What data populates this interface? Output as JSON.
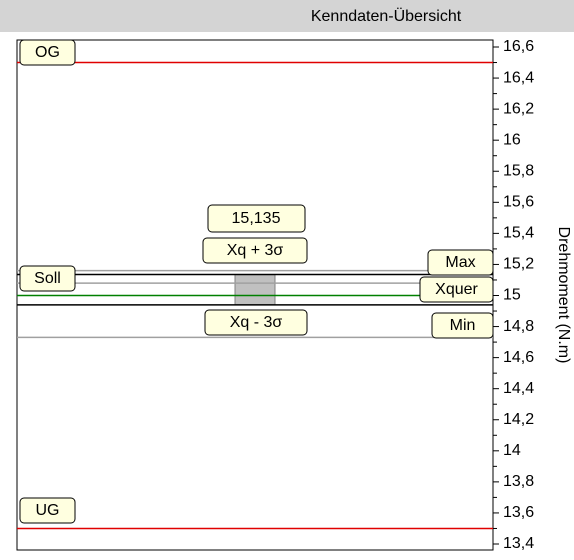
{
  "chart_data": {
    "type": "control-overview",
    "title": "Kenndaten-Übersicht",
    "y_label": "Drehmoment (N.m)",
    "ylim": [
      13.4,
      16.6
    ],
    "yticks": [
      {
        "value": 13.4,
        "label": "13,4"
      },
      {
        "value": 13.6,
        "label": "13,6"
      },
      {
        "value": 13.8,
        "label": "13,8"
      },
      14,
      {
        "value": 14.2,
        "label": "14,2"
      },
      {
        "value": 14.4,
        "label": "14,4"
      },
      {
        "value": 14.6,
        "label": "14,6"
      },
      {
        "value": 14.8,
        "label": "14,8"
      },
      15,
      {
        "value": 15.2,
        "label": "15,2"
      },
      {
        "value": 15.4,
        "label": "15,4"
      },
      {
        "value": 15.6,
        "label": "15,6"
      },
      {
        "value": 15.8,
        "label": "15,8"
      },
      16,
      {
        "value": 16.2,
        "label": "16,2"
      },
      {
        "value": 16.4,
        "label": "16,4"
      },
      {
        "value": 16.6,
        "label": "16,6"
      }
    ],
    "series": [
      {
        "name": "OG",
        "color": "#e00000",
        "values": [
          16.5
        ]
      },
      {
        "name": "UG",
        "color": "#e00000",
        "values": [
          13.5
        ]
      },
      {
        "name": "Soll",
        "color": "#a0a0a0",
        "values": [
          15.08
        ]
      },
      {
        "name": "Max",
        "color": "#a0a0a0",
        "values": [
          15.16
        ]
      },
      {
        "name": "Xquer",
        "color": "#008000",
        "values": [
          15.0
        ]
      },
      {
        "name": "Min",
        "color": "#a0a0a0",
        "values": [
          14.73
        ]
      },
      {
        "name": "Xq + 3σ",
        "color": "#000000",
        "values": [
          15.135
        ],
        "value_labels": [
          "15,135"
        ]
      },
      {
        "name": "Xq - 3σ",
        "color": "#000000",
        "values": [
          14.94
        ]
      }
    ]
  }
}
